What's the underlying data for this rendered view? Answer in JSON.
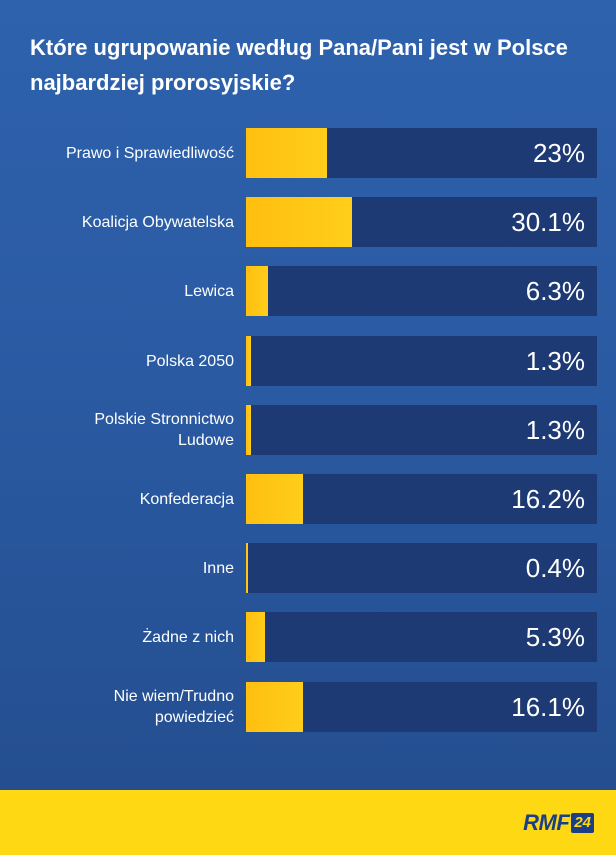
{
  "title": "Które ugrupowanie według Pana/Pani jest w Polsce najbardziej prorosyjskie?",
  "footer": {
    "logo_text": "RMF",
    "logo_badge": "24"
  },
  "chart_data": {
    "type": "bar",
    "orientation": "horizontal",
    "title": "Które ugrupowanie według Pana/Pani jest w Polsce najbardziej prorosyjskie?",
    "xlim": [
      0,
      100
    ],
    "categories": [
      "Prawo i Sprawiedliwość",
      "Koalicja Obywatelska",
      "Lewica",
      "Polska 2050",
      "Polskie Stronnictwo Ludowe",
      "Konfederacja",
      "Inne",
      "Żadne z nich",
      "Nie wiem/Trudno powiedzieć"
    ],
    "values": [
      23,
      30.1,
      6.3,
      1.3,
      1.3,
      16.2,
      0.4,
      5.3,
      16.1
    ],
    "value_labels": [
      "23%",
      "30.1%",
      "6.3%",
      "1.3%",
      "1.3%",
      "16.2%",
      "0.4%",
      "5.3%",
      "16.1%"
    ],
    "colors": {
      "fill": "#ffc20e",
      "track": "#1e3a74",
      "background": "#2b5aa3"
    }
  }
}
